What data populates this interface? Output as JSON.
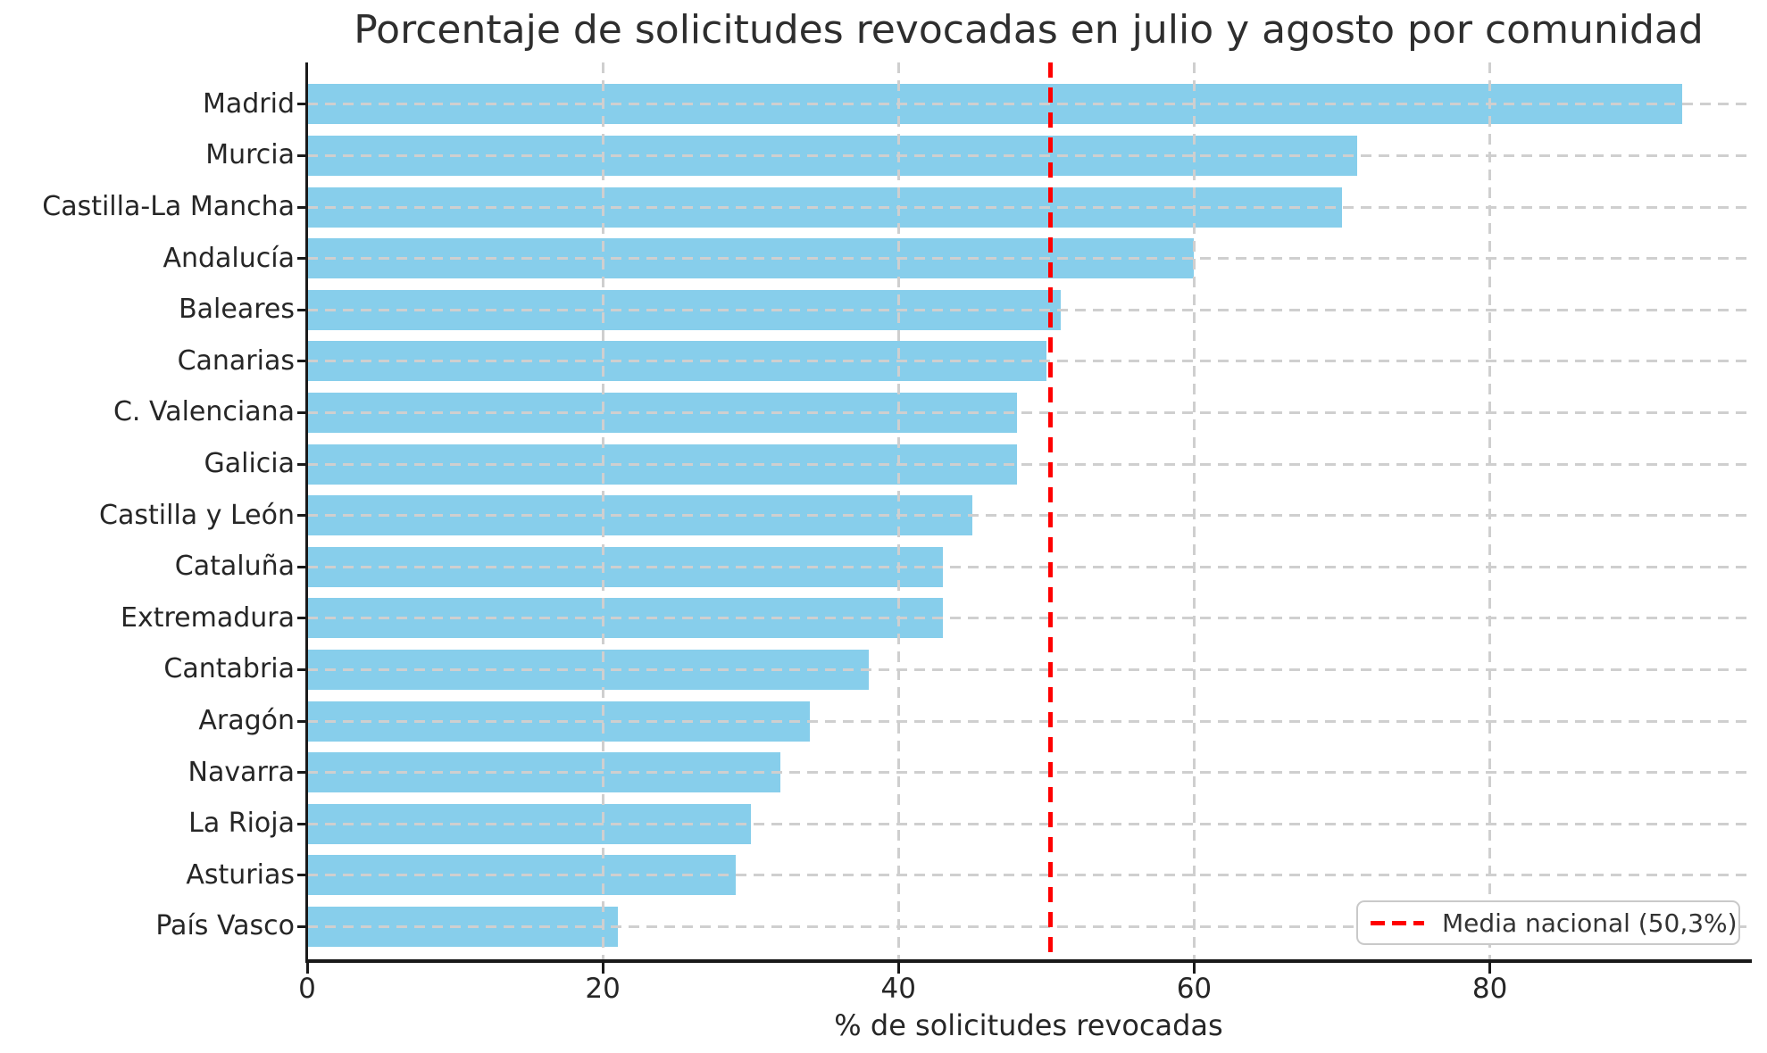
{
  "figure": {
    "title": "Porcentaje de solicitudes revocadas en julio y agosto por comunidad",
    "xlabel": "% de solicitudes revocadas",
    "legend_label": "Media nacional (50,3%)"
  },
  "chart_data": {
    "type": "bar",
    "orientation": "horizontal",
    "title": "Porcentaje de solicitudes revocadas en julio y agosto por comunidad",
    "xlabel": "% de solicitudes revocadas",
    "ylabel": "",
    "categories": [
      "Madrid",
      "Murcia",
      "Castilla-La Mancha",
      "Andalucía",
      "Baleares",
      "Canarias",
      "C. Valenciana",
      "Galicia",
      "Castilla y León",
      "Cataluña",
      "Extremadura",
      "Cantabria",
      "Aragón",
      "Navarra",
      "La Rioja",
      "Asturias",
      "País Vasco"
    ],
    "values": [
      93,
      71,
      70,
      60,
      51,
      50,
      48,
      48,
      45,
      43,
      43,
      38,
      34,
      32,
      30,
      29,
      21
    ],
    "xlim": [
      0,
      97.6
    ],
    "xticks": [
      0,
      20,
      40,
      60,
      80
    ],
    "grid": true,
    "grid_style": "dashed",
    "bar_color": "#87CEEB",
    "mean_line": {
      "value": 50.3,
      "color": "#FF0000",
      "style": "dashed",
      "label": "Media nacional (50,3%)"
    },
    "legend_position": "lower right"
  }
}
